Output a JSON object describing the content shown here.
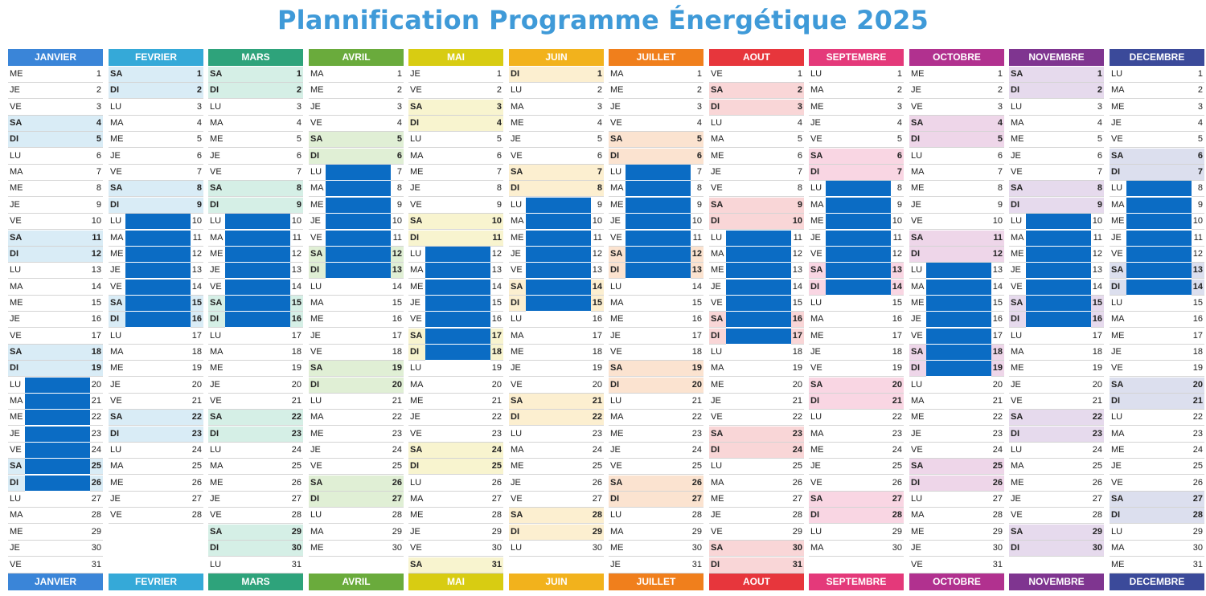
{
  "title": "Plannification Programme Énergétique 2025",
  "year": 2025,
  "colors": {
    "highlight": "#0b6cc4"
  },
  "months": [
    {
      "label": "JANVIER",
      "days": 31,
      "start": "ME",
      "color": "#3a85d8",
      "weekend_bg": "#d9ecf6",
      "highlights": [
        20,
        21,
        22,
        23,
        24,
        25,
        26
      ]
    },
    {
      "label": "FEVRIER",
      "days": 28,
      "start": "SA",
      "color": "#35a9d8",
      "weekend_bg": "#d9ecf6",
      "highlights": [
        10,
        11,
        12,
        13,
        14,
        15,
        16
      ]
    },
    {
      "label": "MARS",
      "days": 31,
      "start": "SA",
      "color": "#2ea37b",
      "weekend_bg": "#d5efe6",
      "highlights": [
        10,
        11,
        12,
        13,
        14,
        15,
        16
      ]
    },
    {
      "label": "AVRIL",
      "days": 30,
      "start": "MA",
      "color": "#6aab3c",
      "weekend_bg": "#e0efd5",
      "highlights": [
        7,
        8,
        9,
        10,
        11,
        12,
        13
      ]
    },
    {
      "label": "MAI",
      "days": 31,
      "start": "JE",
      "color": "#d8cc12",
      "weekend_bg": "#f8f4cf",
      "highlights": [
        12,
        13,
        14,
        15,
        16,
        17,
        18
      ]
    },
    {
      "label": "JUIN",
      "days": 30,
      "start": "DI",
      "color": "#f2b21c",
      "weekend_bg": "#fcefd0",
      "highlights": [
        9,
        10,
        11,
        12,
        13,
        14,
        15
      ]
    },
    {
      "label": "JUILLET",
      "days": 31,
      "start": "MA",
      "color": "#f07f1c",
      "weekend_bg": "#fbe3d0",
      "highlights": [
        7,
        8,
        9,
        10,
        11,
        12,
        13
      ]
    },
    {
      "label": "AOUT",
      "days": 31,
      "start": "VE",
      "color": "#e7363c",
      "weekend_bg": "#f9d6d7",
      "highlights": [
        11,
        12,
        13,
        14,
        15,
        16,
        17
      ]
    },
    {
      "label": "SEPTEMBRE",
      "days": 30,
      "start": "LU",
      "color": "#e4397a",
      "weekend_bg": "#f9d6e3",
      "highlights": [
        8,
        9,
        10,
        11,
        12,
        13,
        14
      ]
    },
    {
      "label": "OCTOBRE",
      "days": 31,
      "start": "ME",
      "color": "#b1318f",
      "weekend_bg": "#eed6e9",
      "highlights": [
        13,
        14,
        15,
        16,
        17,
        18,
        19
      ]
    },
    {
      "label": "NOVEMBRE",
      "days": 30,
      "start": "SA",
      "color": "#7f3590",
      "weekend_bg": "#e6daed",
      "highlights": [
        10,
        11,
        12,
        13,
        14,
        15,
        16
      ]
    },
    {
      "label": "DECEMBRE",
      "days": 31,
      "start": "LU",
      "color": "#3b4a9a",
      "weekend_bg": "#dcdfee",
      "highlights": [
        8,
        9,
        10,
        11,
        12,
        13,
        14
      ]
    }
  ]
}
